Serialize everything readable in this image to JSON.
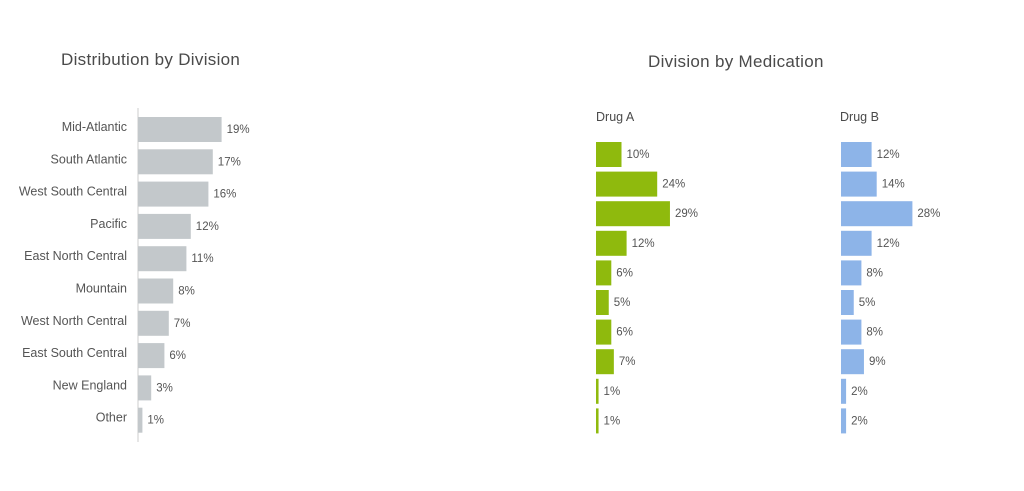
{
  "left_title": "Distribution by Division",
  "right_title": "Division by Medication",
  "colors": {
    "division": "#c3c8cb",
    "drug_a": "#8fba0d",
    "drug_b": "#8db4e8",
    "axis": "#cccccc"
  },
  "chart_data": [
    {
      "type": "bar",
      "orientation": "horizontal",
      "title": "Distribution by Division",
      "categories": [
        "Mid-Atlantic",
        "South Atlantic",
        "West South Central",
        "Pacific",
        "East North Central",
        "Mountain",
        "West North Central",
        "East South Central",
        "New England",
        "Other"
      ],
      "values": [
        19,
        17,
        16,
        12,
        11,
        8,
        7,
        6,
        3,
        1
      ],
      "labels": [
        "19%",
        "17%",
        "16%",
        "12%",
        "11%",
        "8%",
        "7%",
        "6%",
        "3%",
        "1%"
      ],
      "unit": "%"
    },
    {
      "type": "bar",
      "orientation": "horizontal",
      "title": "Division by Medication",
      "panels": [
        {
          "name": "Drug A",
          "values": [
            10,
            24,
            29,
            12,
            6,
            5,
            6,
            7,
            1,
            1
          ],
          "labels": [
            "10%",
            "24%",
            "29%",
            "12%",
            "6%",
            "5%",
            "6%",
            "7%",
            "1%",
            "1%"
          ]
        },
        {
          "name": "Drug B",
          "values": [
            12,
            14,
            28,
            12,
            8,
            5,
            8,
            9,
            2,
            2
          ],
          "labels": [
            "12%",
            "14%",
            "28%",
            "12%",
            "8%",
            "5%",
            "8%",
            "9%",
            "2%",
            "2%"
          ]
        }
      ],
      "unit": "%"
    }
  ]
}
